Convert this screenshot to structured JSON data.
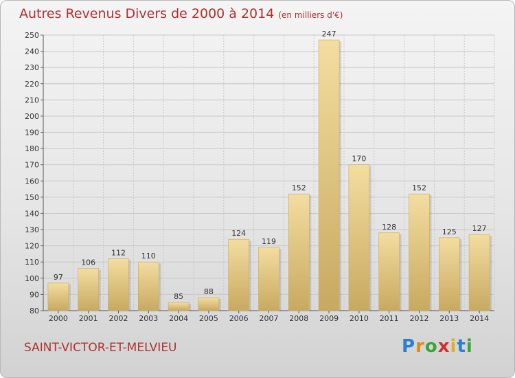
{
  "header": {
    "title": "Autres Revenus Divers de 2000 à 2014",
    "subtitle": "(en milliers d'€)"
  },
  "footer": {
    "commune": "SAINT-VICTOR-ET-MELVIEU",
    "brand": "Proxiti"
  },
  "colors": {
    "title": "#b03030",
    "bar_light": "#f3dda0",
    "bar_dark": "#c8a960",
    "grid": "#c8c8c8"
  },
  "chart_data": {
    "type": "bar",
    "title": "Autres Revenus Divers de 2000 à 2014",
    "subtitle": "(en milliers d'€)",
    "categories": [
      "2000",
      "2001",
      "2002",
      "2003",
      "2004",
      "2005",
      "2006",
      "2007",
      "2008",
      "2009",
      "2010",
      "2011",
      "2012",
      "2013",
      "2014"
    ],
    "values": [
      97,
      106,
      112,
      110,
      85,
      88,
      124,
      119,
      152,
      247,
      170,
      128,
      152,
      125,
      127
    ],
    "ylim": [
      80,
      250
    ],
    "yticks": [
      80,
      90,
      100,
      110,
      120,
      130,
      140,
      150,
      160,
      170,
      180,
      190,
      200,
      210,
      220,
      230,
      240,
      250
    ],
    "xlabel": "",
    "ylabel": "",
    "grid": true,
    "data_labels": true
  }
}
